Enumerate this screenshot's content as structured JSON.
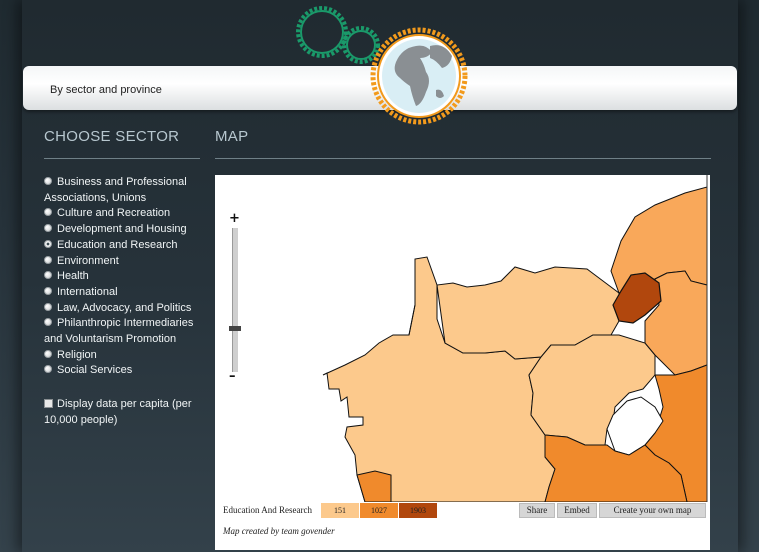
{
  "header": {
    "subtitle": "By sector and province"
  },
  "sidebar": {
    "title": "CHOOSE SECTOR",
    "sectors": [
      {
        "label": "Business and Professional Associations, Unions",
        "selected": false
      },
      {
        "label": "Culture and Recreation",
        "selected": false
      },
      {
        "label": "Development and Housing",
        "selected": false
      },
      {
        "label": "Education and Research",
        "selected": true
      },
      {
        "label": "Environment",
        "selected": false
      },
      {
        "label": "Health",
        "selected": false
      },
      {
        "label": "International",
        "selected": false
      },
      {
        "label": "Law, Advocacy, and Politics",
        "selected": false
      },
      {
        "label": "Philanthropic Intermediaries and Voluntarism Promotion",
        "selected": false
      },
      {
        "label": "Religion",
        "selected": false
      },
      {
        "label": "Social Services",
        "selected": false
      }
    ],
    "per_capita_label": "Display data per capita (per 10,000 people)",
    "per_capita_checked": false
  },
  "map": {
    "title": "MAP",
    "zoom_in": "+",
    "zoom_out": "–",
    "zoom_level_fraction": 0.3,
    "legend": {
      "title": "Education And Research",
      "bins": [
        {
          "label": "151",
          "color": "#fcc98c"
        },
        {
          "label": "1027",
          "color": "#f08a2c"
        },
        {
          "label": "1903",
          "color": "#b1470d"
        }
      ]
    },
    "buttons": {
      "share": "Share",
      "embed": "Embed",
      "create": "Create your own map"
    },
    "credit": "Map created by team govender",
    "colors": {
      "light": "#fcc98c",
      "mid_light": "#f9a85a",
      "mid": "#f08a2c",
      "dark": "#b1470d"
    }
  }
}
